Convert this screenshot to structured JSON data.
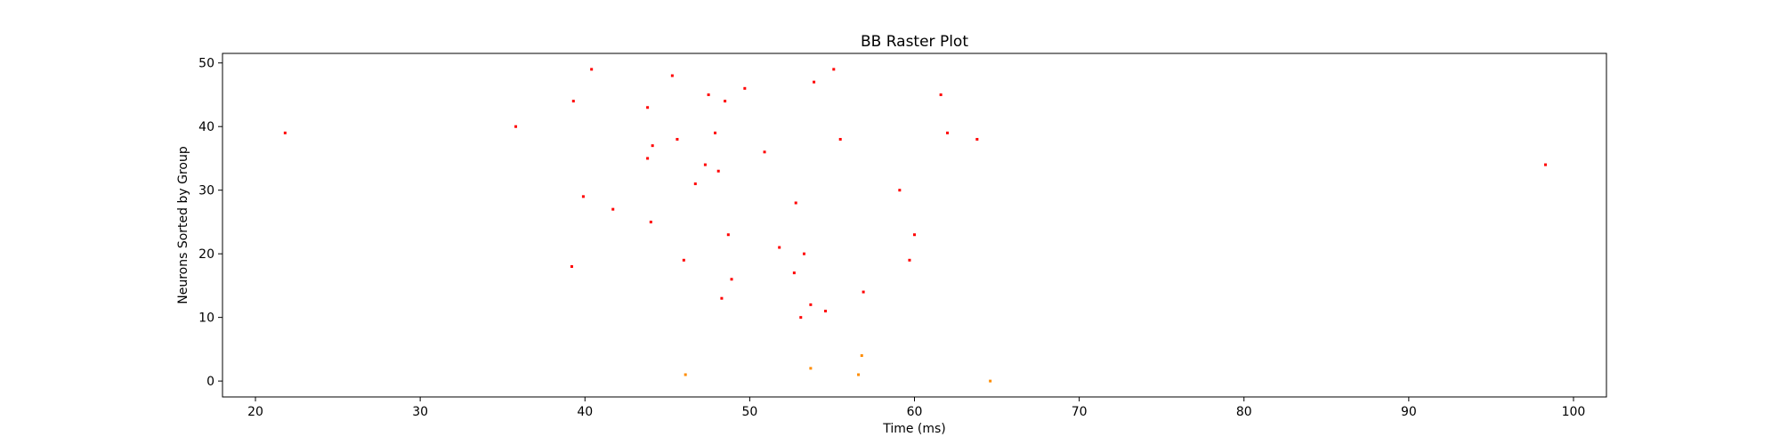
{
  "chart_data": {
    "type": "scatter",
    "title": "BB Raster Plot",
    "xlabel": "Time (ms)",
    "ylabel": "Neurons Sorted by Group",
    "xlim": [
      18,
      102
    ],
    "ylim": [
      -2.5,
      51.5
    ],
    "xticks": [
      20,
      30,
      40,
      50,
      60,
      70,
      80,
      90,
      100
    ],
    "yticks": [
      0,
      10,
      20,
      30,
      40,
      50
    ],
    "grid": false,
    "series": [
      {
        "color": "#ff0000",
        "points": [
          [
            21.8,
            39
          ],
          [
            35.8,
            40
          ],
          [
            39.2,
            18
          ],
          [
            39.3,
            44
          ],
          [
            39.9,
            29
          ],
          [
            40.4,
            49
          ],
          [
            41.7,
            27
          ],
          [
            43.8,
            43
          ],
          [
            43.8,
            35
          ],
          [
            44.0,
            25
          ],
          [
            44.1,
            37
          ],
          [
            45.3,
            48
          ],
          [
            45.6,
            38
          ],
          [
            46.0,
            19
          ],
          [
            46.7,
            31
          ],
          [
            47.3,
            34
          ],
          [
            47.5,
            45
          ],
          [
            47.9,
            39
          ],
          [
            48.1,
            33
          ],
          [
            48.3,
            13
          ],
          [
            48.5,
            44
          ],
          [
            48.7,
            23
          ],
          [
            48.9,
            16
          ],
          [
            49.7,
            46
          ],
          [
            50.9,
            36
          ],
          [
            51.8,
            21
          ],
          [
            52.7,
            17
          ],
          [
            52.8,
            28
          ],
          [
            53.1,
            10
          ],
          [
            53.3,
            20
          ],
          [
            53.7,
            12
          ],
          [
            53.9,
            47
          ],
          [
            54.6,
            11
          ],
          [
            55.1,
            49
          ],
          [
            55.5,
            38
          ],
          [
            56.9,
            14
          ],
          [
            59.1,
            30
          ],
          [
            59.7,
            19
          ],
          [
            60.0,
            23
          ],
          [
            61.6,
            45
          ],
          [
            62.0,
            39
          ],
          [
            63.8,
            38
          ],
          [
            98.3,
            34
          ]
        ]
      },
      {
        "color": "#ff8c00",
        "points": [
          [
            46.1,
            1
          ],
          [
            53.7,
            2
          ],
          [
            56.6,
            1
          ],
          [
            56.8,
            4
          ],
          [
            64.6,
            0
          ]
        ]
      }
    ]
  }
}
